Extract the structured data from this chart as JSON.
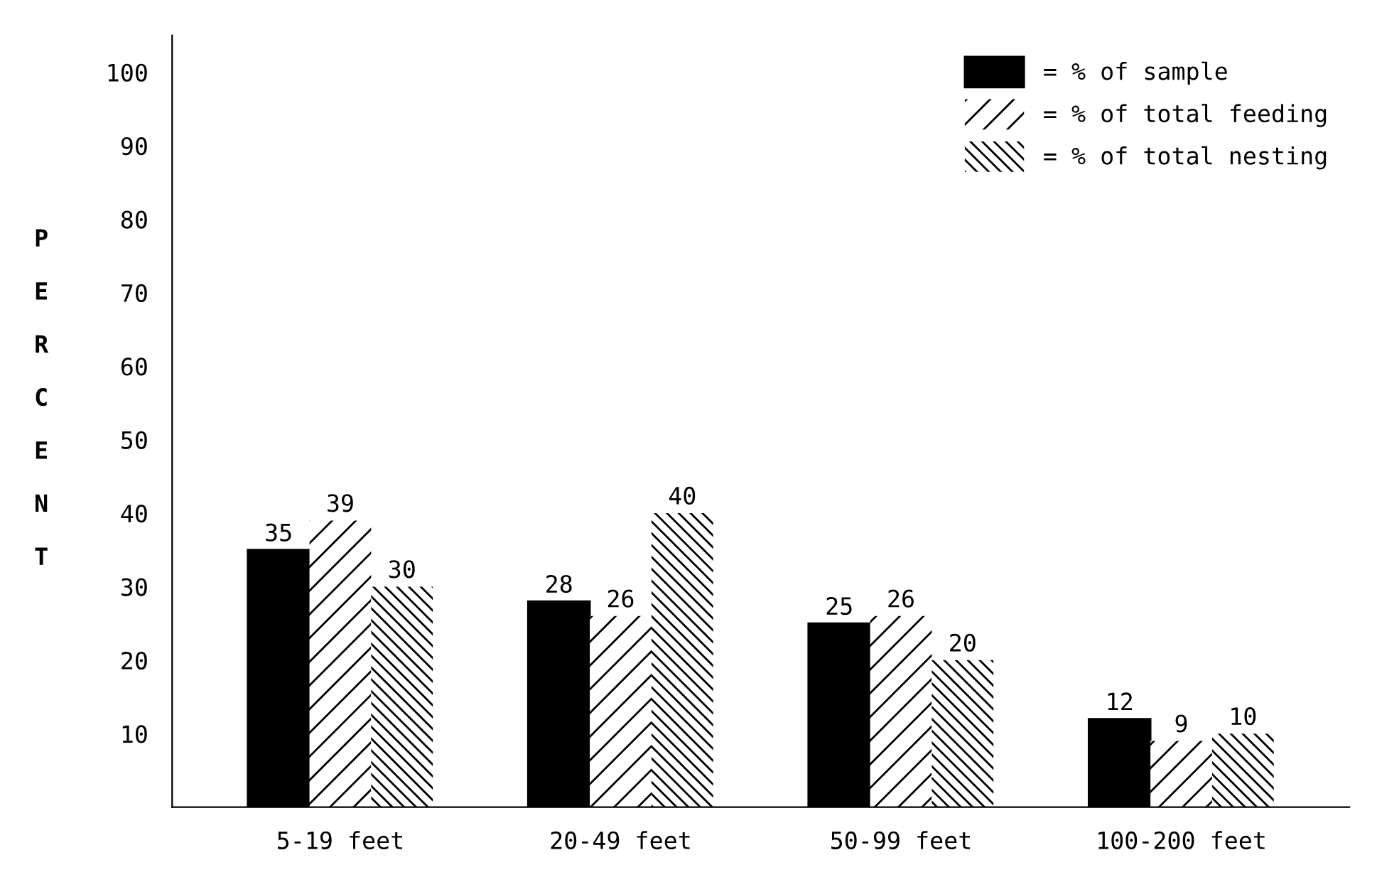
{
  "chart_data": {
    "type": "bar",
    "ylabel": "PERCENT",
    "categories": [
      "5-19 feet",
      "20-49 feet",
      "50-99 feet",
      "100-200 feet"
    ],
    "series": [
      {
        "name": "= % of sample",
        "color": "#000000",
        "values": [
          35,
          28,
          25,
          12
        ]
      },
      {
        "name": "= % of total feeding",
        "color": "#ffffff",
        "values": [
          39,
          26,
          26,
          9
        ]
      },
      {
        "name": "= % of total nesting",
        "color": "#ffffff",
        "values": [
          30,
          40,
          20,
          10
        ]
      }
    ],
    "ylim": [
      0,
      105
    ],
    "yticks": [
      10,
      20,
      30,
      40,
      50,
      60,
      70,
      80,
      90,
      100
    ],
    "data_labels": true,
    "grid": false,
    "legend": "top right"
  }
}
